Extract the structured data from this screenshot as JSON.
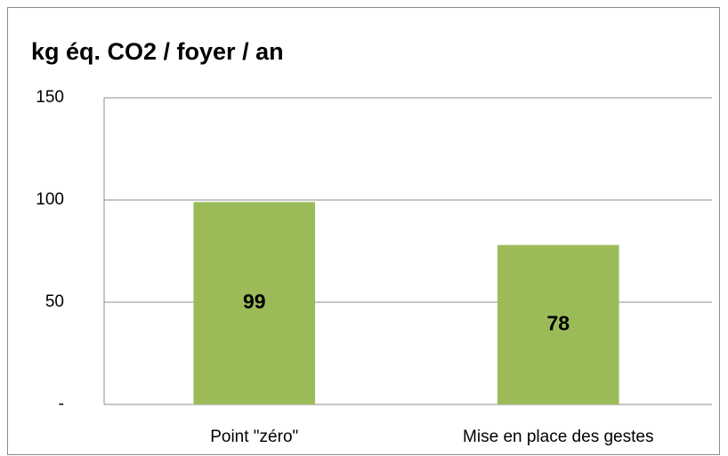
{
  "chart_data": {
    "type": "bar",
    "title": "kg éq. CO2 / foyer / an",
    "categories": [
      "Point \"zéro\"",
      "Mise en place des gestes"
    ],
    "values": [
      99,
      78
    ],
    "color": "#9bbb59",
    "ylim": [
      0,
      150
    ],
    "yticks": [
      {
        "value": 0,
        "label": "-"
      },
      50,
      100,
      150
    ],
    "grid": true
  }
}
